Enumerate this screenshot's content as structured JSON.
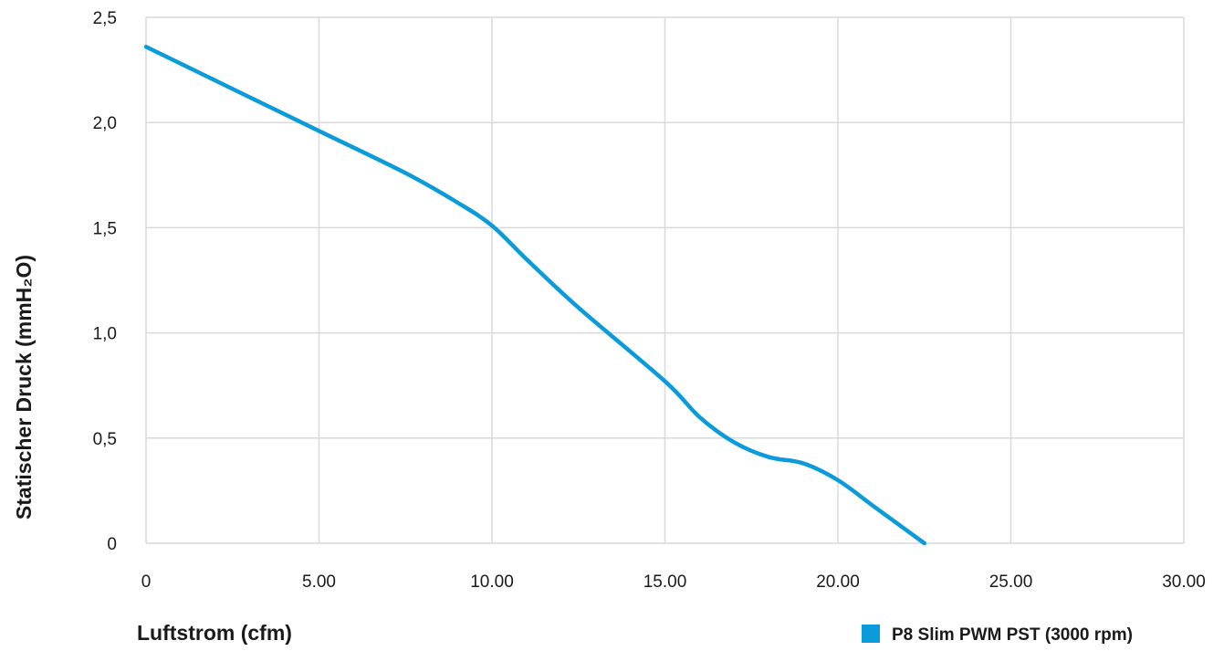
{
  "chart_data": {
    "type": "line",
    "title": "",
    "xlabel": "Luftstrom (cfm)",
    "ylabel": "Statischer Druck (mmH₂O)",
    "xlim": [
      0,
      30
    ],
    "ylim": [
      0,
      2.5
    ],
    "x_ticks": [
      {
        "value": 0,
        "label": "0"
      },
      {
        "value": 5,
        "label": "5.00"
      },
      {
        "value": 10,
        "label": "10.00"
      },
      {
        "value": 15,
        "label": "15.00"
      },
      {
        "value": 20,
        "label": "20.00"
      },
      {
        "value": 25,
        "label": "25.00"
      },
      {
        "value": 30,
        "label": "30.00"
      }
    ],
    "y_ticks": [
      {
        "value": 0,
        "label": "0"
      },
      {
        "value": 0.5,
        "label": "0,5"
      },
      {
        "value": 1.0,
        "label": "1,0"
      },
      {
        "value": 1.5,
        "label": "1,5"
      },
      {
        "value": 2.0,
        "label": "2,0"
      },
      {
        "value": 2.5,
        "label": "2,5"
      }
    ],
    "grid": true,
    "legend_position": "bottom-right",
    "series": [
      {
        "name": "P8 Slim PWM PST (3000 rpm)",
        "color": "#0b9bdb",
        "x": [
          0,
          2.5,
          5,
          7.5,
          9,
          10,
          11,
          12.5,
          15,
          16,
          17,
          18,
          19,
          20,
          21,
          22,
          22.5
        ],
        "y": [
          2.36,
          2.16,
          1.96,
          1.76,
          1.62,
          1.51,
          1.35,
          1.12,
          0.77,
          0.6,
          0.48,
          0.41,
          0.38,
          0.3,
          0.18,
          0.06,
          0.0
        ]
      }
    ]
  }
}
